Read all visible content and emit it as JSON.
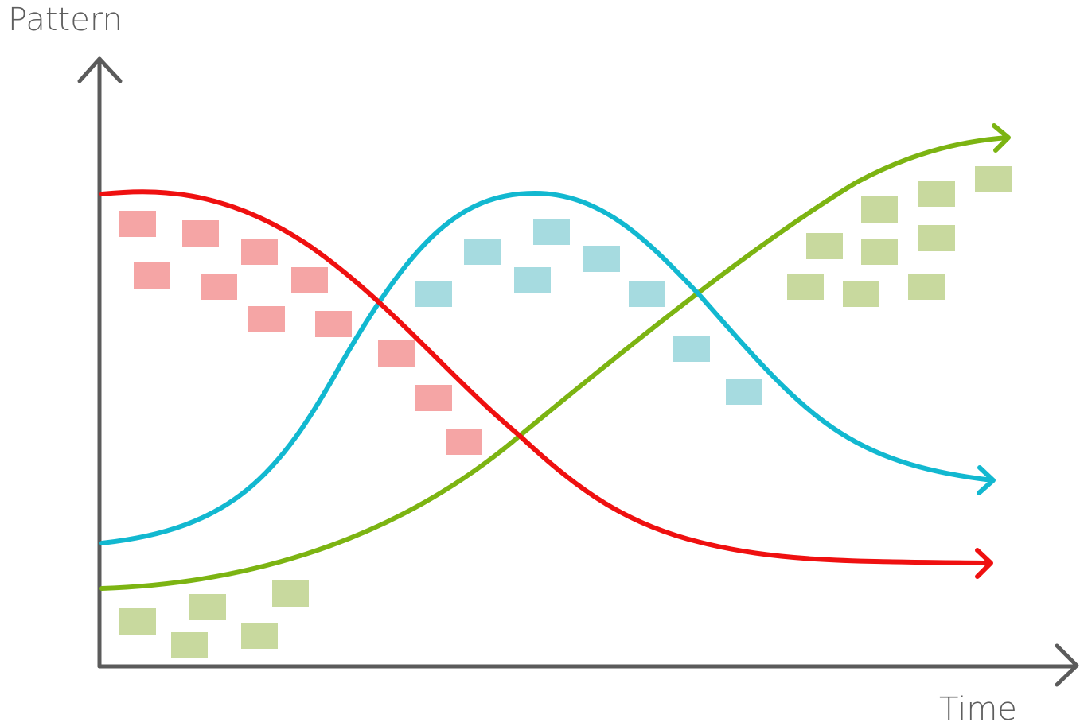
{
  "axes": {
    "y_label": "Pattern",
    "x_label": "Time"
  },
  "colors": {
    "axis": "#5b5b5b",
    "red_curve": "#ef1010",
    "cyan_curve": "#12b8d0",
    "green_curve": "#7cb412",
    "red_note": "#f5a5a5",
    "cyan_note": "#a6dbe0",
    "green_note": "#c8d99e"
  }
}
